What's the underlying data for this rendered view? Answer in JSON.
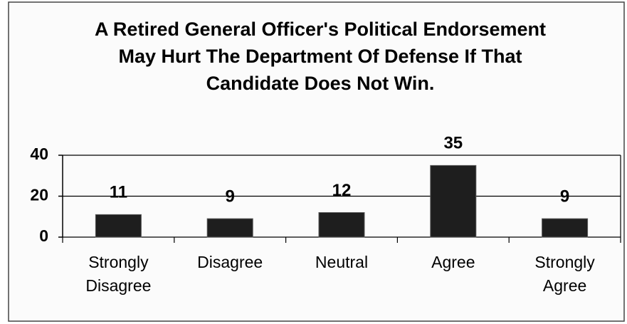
{
  "chart_data": {
    "type": "bar",
    "title": "A Retired General Officer's Political Endorsement May Hurt The Department Of Defense If That Candidate Does Not Win.",
    "categories": [
      "Strongly Disagree",
      "Disagree",
      "Neutral",
      "Agree",
      "Strongly Agree"
    ],
    "values": [
      11,
      9,
      12,
      35,
      9
    ],
    "color": "#1e1e1e",
    "ylim": [
      0,
      40
    ],
    "yticks": [
      0,
      20,
      40
    ],
    "grid": true
  }
}
